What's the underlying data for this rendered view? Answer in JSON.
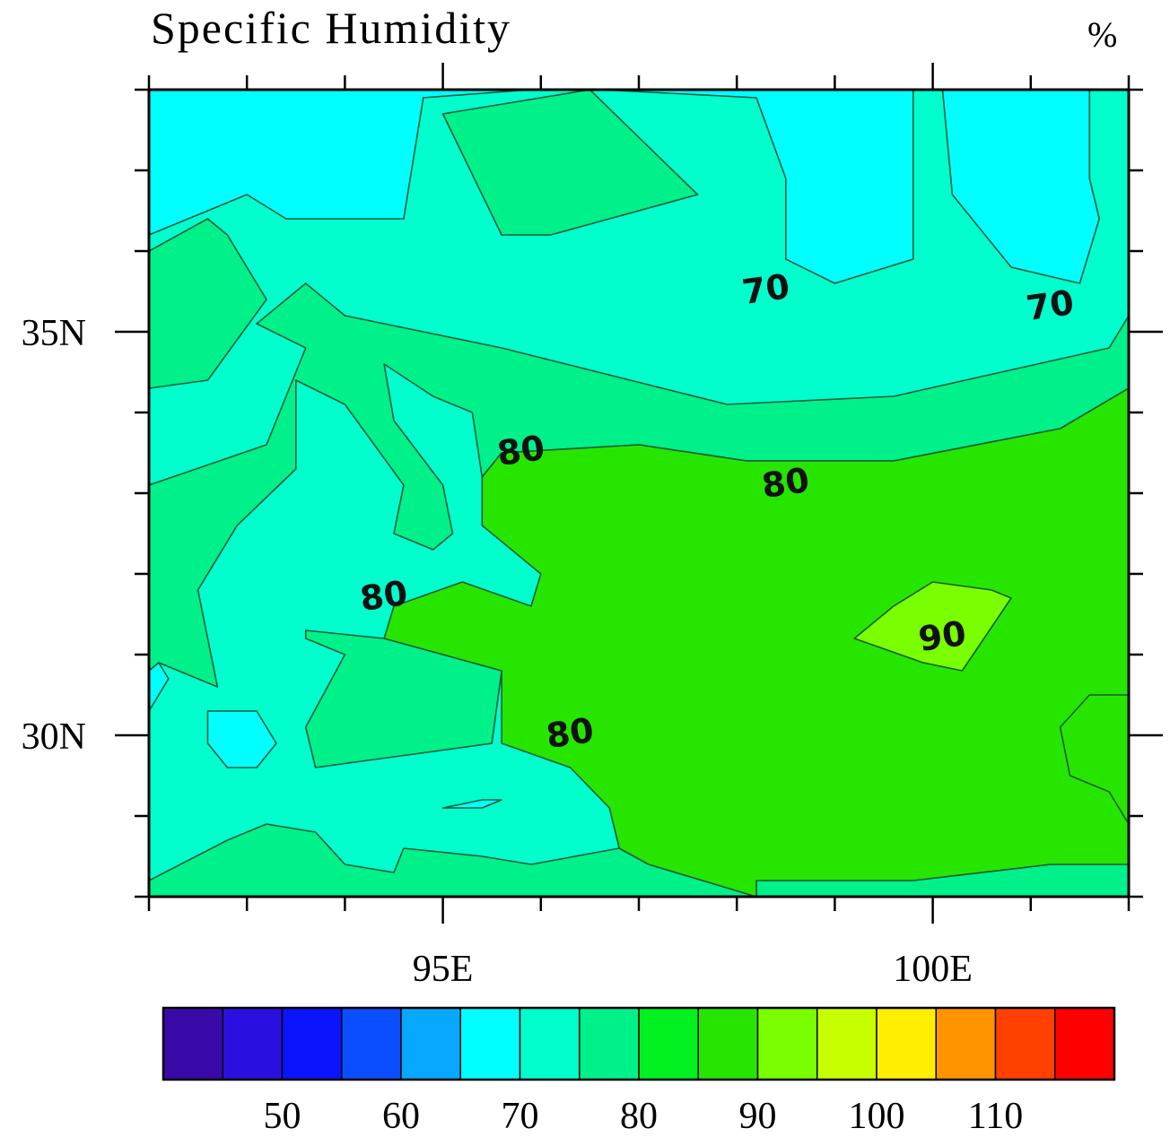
{
  "chart_data": {
    "type": "heatmap",
    "title": "Specific Humidity",
    "units": "%",
    "x_ticks": [
      {
        "lon": 95,
        "label": "95E"
      },
      {
        "lon": 100,
        "label": "100E"
      }
    ],
    "y_ticks": [
      {
        "lat": 35,
        "label": "35N"
      },
      {
        "lat": 30,
        "label": "30N"
      }
    ],
    "lon_range": [
      92,
      102
    ],
    "lat_range": [
      28,
      38
    ],
    "minor_tick_step_deg": 1,
    "colorbar": {
      "levels": [
        45,
        50,
        55,
        60,
        65,
        70,
        75,
        80,
        85,
        90,
        95,
        100,
        105,
        110,
        115
      ],
      "colors": [
        "#3a0aa8",
        "#2a10e0",
        "#0a14ff",
        "#0a4eff",
        "#08a8ff",
        "#00ffff",
        "#00ffcc",
        "#00f08a",
        "#00f020",
        "#26e600",
        "#7aff00",
        "#c8ff00",
        "#ffee00",
        "#ff9400",
        "#ff4000",
        "#ff0000"
      ],
      "tick_labels": [
        "50",
        "60",
        "70",
        "80",
        "90",
        "100",
        "110"
      ],
      "tick_values": [
        50,
        60,
        70,
        80,
        90,
        100,
        110
      ]
    },
    "contour_labels": [
      {
        "text": "70",
        "lon": 98.3,
        "lat": 35.5
      },
      {
        "text": "70",
        "lon": 101.2,
        "lat": 35.3
      },
      {
        "text": "80",
        "lon": 95.8,
        "lat": 33.5
      },
      {
        "text": "80",
        "lon": 98.5,
        "lat": 33.1
      },
      {
        "text": "80",
        "lon": 94.4,
        "lat": 31.7
      },
      {
        "text": "80",
        "lon": 96.3,
        "lat": 30.0
      },
      {
        "text": "90",
        "lon": 100.1,
        "lat": 31.2
      }
    ],
    "regions": [
      {
        "value": 68,
        "rings": [
          [
            [
              92,
              38
            ],
            [
              92,
              36.2
            ],
            [
              93,
              36.7
            ],
            [
              93.4,
              36.4
            ],
            [
              94.6,
              36.4
            ],
            [
              94.8,
              37.9
            ],
            [
              95.9,
              38
            ],
            [
              92,
              38
            ]
          ]
        ]
      },
      {
        "value": 68,
        "rings": [
          [
            [
              96.6,
              38
            ],
            [
              98.2,
              37.9
            ],
            [
              98.5,
              36.9
            ],
            [
              98.5,
              35.9
            ],
            [
              99,
              35.6
            ],
            [
              99.8,
              35.9
            ],
            [
              99.8,
              38
            ],
            [
              96.6,
              38
            ]
          ]
        ]
      },
      {
        "value": 68,
        "rings": [
          [
            [
              100.1,
              38
            ],
            [
              101.6,
              38
            ],
            [
              101.6,
              36.9
            ],
            [
              101.7,
              36.4
            ],
            [
              101.5,
              35.6
            ],
            [
              100.8,
              35.8
            ],
            [
              100.2,
              36.7
            ],
            [
              100.1,
              38
            ]
          ]
        ]
      },
      {
        "value": 68,
        "rings": [
          [
            [
              92,
              30.8
            ],
            [
              92.1,
              30.9
            ],
            [
              92.2,
              30.7
            ],
            [
              92,
              30.3
            ],
            [
              92,
              30.8
            ]
          ]
        ]
      },
      {
        "value": 68,
        "rings": [
          [
            [
              92.6,
              30.3
            ],
            [
              93.1,
              30.3
            ],
            [
              93.3,
              29.9
            ],
            [
              93.1,
              29.6
            ],
            [
              92.8,
              29.6
            ],
            [
              92.6,
              29.9
            ],
            [
              92.6,
              30.3
            ]
          ]
        ]
      },
      {
        "value": 68,
        "rings": [
          [
            [
              95.4,
              29.2
            ],
            [
              95.6,
              29.2
            ],
            [
              95.4,
              29.1
            ],
            [
              95,
              29.1
            ],
            [
              95.4,
              29.2
            ]
          ]
        ]
      },
      {
        "value": 78,
        "rings": [
          [
            [
              95,
              37.7
            ],
            [
              96.5,
              38
            ],
            [
              97.6,
              36.7
            ],
            [
              96.1,
              36.2
            ],
            [
              95.6,
              36.2
            ],
            [
              95,
              37.7
            ]
          ]
        ]
      },
      {
        "value": 78,
        "rings": [
          [
            [
              92,
              36
            ],
            [
              92.6,
              36.4
            ],
            [
              92.8,
              36.2
            ],
            [
              93.2,
              35.4
            ],
            [
              92.6,
              34.4
            ],
            [
              92,
              34.3
            ],
            [
              92,
              36
            ]
          ]
        ]
      },
      {
        "value": 78,
        "rings": [
          [
            [
              93.1,
              35.1
            ],
            [
              93.6,
              35.6
            ],
            [
              94,
              35.2
            ],
            [
              95.6,
              34.8
            ],
            [
              97.9,
              34.1
            ],
            [
              99.6,
              34.2
            ],
            [
              101.8,
              34.8
            ],
            [
              102,
              35.2
            ],
            [
              102,
              34.3
            ],
            [
              101.3,
              33.8
            ],
            [
              99.6,
              33.4
            ],
            [
              98.1,
              33.4
            ],
            [
              97,
              33.6
            ],
            [
              95.6,
              33.5
            ],
            [
              95.4,
              33.2
            ],
            [
              95.3,
              34
            ],
            [
              94.9,
              34.2
            ],
            [
              94.4,
              34.6
            ],
            [
              94.5,
              33.9
            ],
            [
              95,
              33.1
            ],
            [
              95.1,
              32.5
            ],
            [
              94.9,
              32.3
            ],
            [
              94.5,
              32.5
            ],
            [
              94.6,
              33.1
            ],
            [
              94,
              34.1
            ],
            [
              93.5,
              34.4
            ],
            [
              93.5,
              33.3
            ],
            [
              92.9,
              32.6
            ],
            [
              92.5,
              31.8
            ],
            [
              92.7,
              30.6
            ],
            [
              92.1,
              30.9
            ],
            [
              92,
              30.8
            ],
            [
              92,
              33.1
            ],
            [
              93.2,
              33.6
            ],
            [
              93.6,
              34.8
            ],
            [
              93.1,
              35.1
            ]
          ]
        ]
      },
      {
        "value": 78,
        "rings": [
          [
            [
              92,
              28.2
            ],
            [
              92.8,
              28.7
            ],
            [
              93.2,
              28.9
            ],
            [
              93.7,
              28.8
            ],
            [
              94,
              28.4
            ],
            [
              94.5,
              28.3
            ],
            [
              94.6,
              28.6
            ],
            [
              95.4,
              28.5
            ],
            [
              95.9,
              28.4
            ],
            [
              96.8,
              28.6
            ],
            [
              97.1,
              28.4
            ],
            [
              98.2,
              28
            ],
            [
              92,
              28
            ],
            [
              92,
              28.2
            ]
          ]
        ]
      },
      {
        "value": 78,
        "rings": [
          [
            [
              93.6,
              31.2
            ],
            [
              93.6,
              31.3
            ],
            [
              94.4,
              31.2
            ],
            [
              95.6,
              30.8
            ],
            [
              95.5,
              29.9
            ],
            [
              94.3,
              29.7
            ],
            [
              93.7,
              29.6
            ],
            [
              93.6,
              30.1
            ],
            [
              94,
              31
            ],
            [
              93.6,
              31.2
            ]
          ]
        ]
      },
      {
        "value": 78,
        "rings": [
          [
            [
              98.2,
              28.2
            ],
            [
              99.8,
              28.2
            ],
            [
              101.2,
              28.4
            ],
            [
              102,
              28.4
            ],
            [
              102,
              28
            ],
            [
              98.2,
              28
            ],
            [
              98.2,
              28.2
            ]
          ]
        ]
      },
      {
        "value": 86,
        "rings": [
          [
            [
              95.6,
              33.5
            ],
            [
              97,
              33.6
            ],
            [
              98.1,
              33.4
            ],
            [
              99.6,
              33.4
            ],
            [
              101.3,
              33.8
            ],
            [
              102,
              34.3
            ],
            [
              102,
              28.4
            ],
            [
              101.2,
              28.4
            ],
            [
              99.8,
              28.2
            ],
            [
              98.2,
              28.2
            ],
            [
              98.2,
              28
            ],
            [
              97.1,
              28.4
            ],
            [
              96.8,
              28.6
            ],
            [
              96.7,
              29.1
            ],
            [
              96.3,
              29.6
            ],
            [
              95.6,
              29.9
            ],
            [
              95.6,
              30.8
            ],
            [
              94.4,
              31.2
            ],
            [
              94.5,
              31.6
            ],
            [
              95.2,
              31.9
            ],
            [
              95.9,
              31.6
            ],
            [
              96,
              32
            ],
            [
              95.4,
              32.6
            ],
            [
              95.4,
              33.2
            ],
            [
              95.6,
              33.5
            ]
          ]
        ]
      },
      {
        "value": 86,
        "rings": [
          [
            [
              101.3,
              30.1
            ],
            [
              101.4,
              29.5
            ],
            [
              101.8,
              29.3
            ],
            [
              102,
              28.9
            ],
            [
              102,
              30.5
            ],
            [
              101.6,
              30.5
            ],
            [
              101.3,
              30.1
            ]
          ]
        ]
      },
      {
        "value": 94,
        "rings": [
          [
            [
              99.2,
              31.2
            ],
            [
              99.9,
              30.9
            ],
            [
              100.3,
              30.8
            ],
            [
              100.8,
              31.7
            ],
            [
              100.6,
              31.8
            ],
            [
              100,
              31.9
            ],
            [
              99.6,
              31.6
            ],
            [
              99.2,
              31.2
            ]
          ]
        ]
      }
    ]
  }
}
